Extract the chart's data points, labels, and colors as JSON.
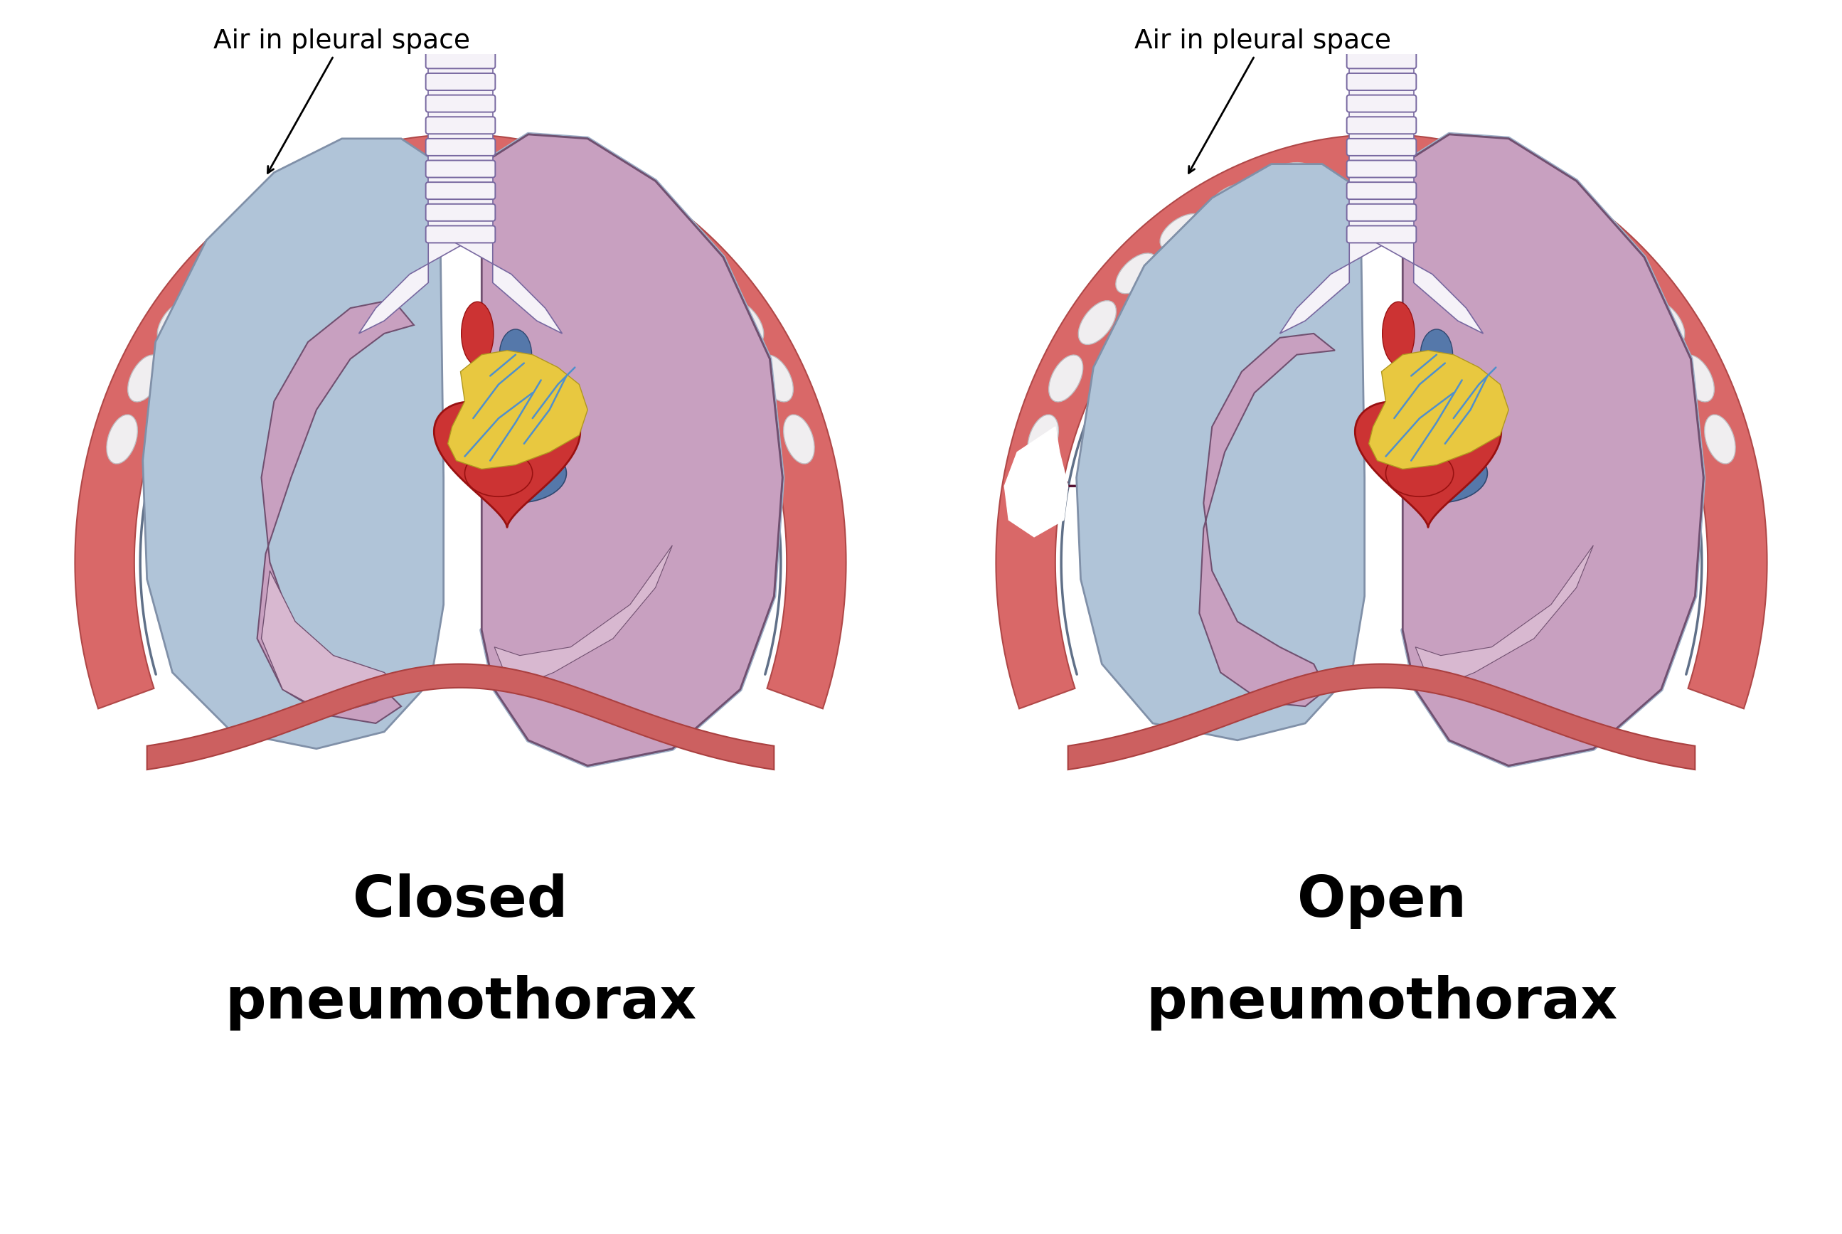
{
  "background_color": "#ffffff",
  "fig_width": 25.9,
  "fig_height": 17.35,
  "left_label_line1": "Closed",
  "left_label_line2": "pneumothorax",
  "right_label_line1": "Open",
  "right_label_line2": "pneumothorax",
  "annotation_text": "Air in pleural space",
  "label_fontsize": 58,
  "annotation_fontsize": 27,
  "colors": {
    "lung_blue": "#b0c4d8",
    "lung_blue_edge": "#8090a8",
    "lung_pink": "#c8a0c0",
    "lung_pink_light": "#d8b8d0",
    "lung_pink_edge": "#705070",
    "chest_wall_red": "#d96868",
    "chest_wall_edge": "#b04848",
    "pleural_lining": "#a0b0c8",
    "pleural_lining_edge": "#607088",
    "rib_white": "#f0eef0",
    "rib_edge": "#c0bcc0",
    "trachea_fill": "#f5f2f8",
    "trachea_stripe": "#7868a0",
    "heart_red": "#cc3333",
    "heart_dark": "#991111",
    "heart_yellow": "#e8c840",
    "heart_blue_vessel": "#5578aa",
    "coronary_blue": "#5090cc",
    "arrow_color": "#551133",
    "diaphragm_red": "#cc6060"
  }
}
